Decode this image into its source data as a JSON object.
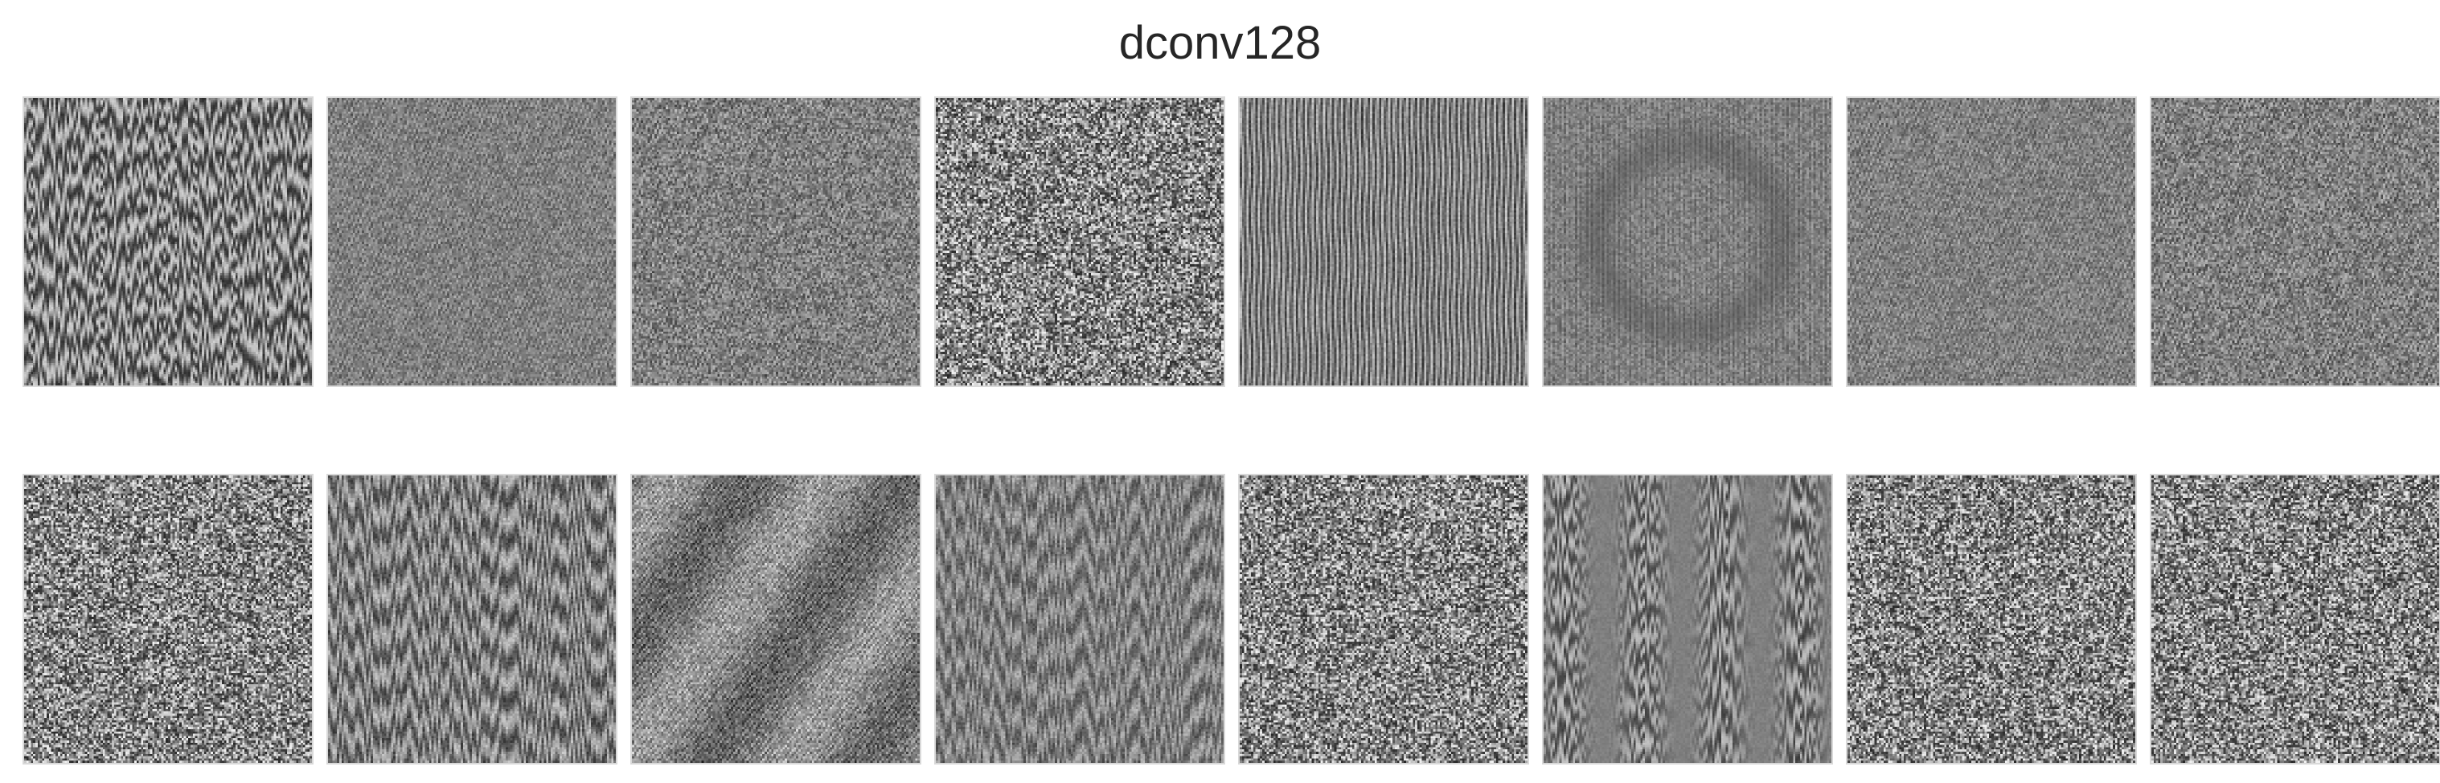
{
  "figure": {
    "title": "dconv128"
  },
  "grid": {
    "rows": 2,
    "cols": 8
  },
  "tiles": [
    {
      "row": 0,
      "col": 0,
      "pattern": "streaks-dense-vertical",
      "contrast": "medium"
    },
    {
      "row": 0,
      "col": 1,
      "pattern": "fine-texture",
      "contrast": "low"
    },
    {
      "row": 0,
      "col": 2,
      "pattern": "fine-texture",
      "contrast": "low-medium"
    },
    {
      "row": 0,
      "col": 3,
      "pattern": "salt-and-pepper-noise",
      "contrast": "high"
    },
    {
      "row": 0,
      "col": 4,
      "pattern": "vertical-stripes",
      "contrast": "medium"
    },
    {
      "row": 0,
      "col": 5,
      "pattern": "texture-with-faint-ring",
      "contrast": "low"
    },
    {
      "row": 0,
      "col": 6,
      "pattern": "fine-texture",
      "contrast": "low"
    },
    {
      "row": 0,
      "col": 7,
      "pattern": "fine-texture",
      "contrast": "low-medium"
    },
    {
      "row": 1,
      "col": 0,
      "pattern": "salt-and-pepper-noise",
      "contrast": "high"
    },
    {
      "row": 1,
      "col": 1,
      "pattern": "vertical-texture",
      "contrast": "medium"
    },
    {
      "row": 1,
      "col": 2,
      "pattern": "diagonal-streaks",
      "contrast": "medium"
    },
    {
      "row": 1,
      "col": 3,
      "pattern": "vertical-texture",
      "contrast": "low-medium"
    },
    {
      "row": 1,
      "col": 4,
      "pattern": "salt-and-pepper-noise",
      "contrast": "high"
    },
    {
      "row": 1,
      "col": 5,
      "pattern": "vertical-streaks-smooth",
      "contrast": "medium"
    },
    {
      "row": 1,
      "col": 6,
      "pattern": "salt-and-pepper-noise",
      "contrast": "high"
    },
    {
      "row": 1,
      "col": 7,
      "pattern": "salt-and-pepper-noise",
      "contrast": "high"
    }
  ]
}
